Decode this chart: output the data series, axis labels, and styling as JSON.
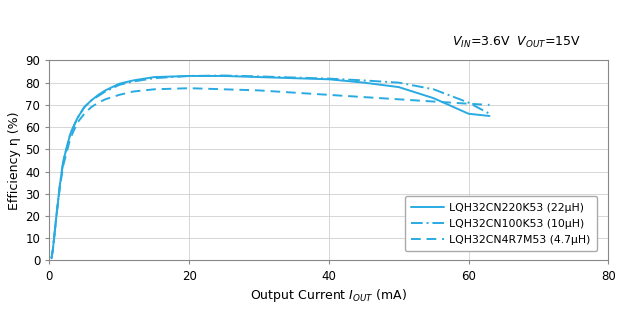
{
  "title_annotation": "$V_{IN}$=3.6V  $V_{OUT}$=15V",
  "xlabel": "Output Current $I_{OUT}$ (mA)",
  "ylabel": "Efficiency η (%)",
  "xlim": [
    0,
    80
  ],
  "ylim": [
    0,
    90
  ],
  "xticks": [
    0,
    20,
    40,
    60,
    80
  ],
  "yticks": [
    0,
    10,
    20,
    30,
    40,
    50,
    60,
    70,
    80,
    90
  ],
  "line_color": "#29ABE2",
  "background_color": "#ffffff",
  "series": [
    {
      "label": "LQH32CN220K53 (22μH)",
      "linestyle": "solid",
      "x": [
        0.3,
        0.5,
        1,
        1.5,
        2,
        3,
        4,
        5,
        6,
        7,
        8,
        9,
        10,
        12,
        15,
        20,
        25,
        30,
        35,
        40,
        45,
        50,
        55,
        60,
        63
      ],
      "y": [
        1,
        5,
        20,
        34,
        45,
        57,
        64,
        69,
        72,
        74.5,
        76.5,
        78,
        79.5,
        81,
        82.5,
        83,
        83,
        82.5,
        82,
        81.5,
        80,
        78,
        73,
        66,
        65
      ]
    },
    {
      "label": "LQH32CN100K53 (10μH)",
      "linestyle": "dashdot",
      "x": [
        0.3,
        0.5,
        1,
        1.5,
        2,
        3,
        4,
        5,
        6,
        7,
        8,
        9,
        10,
        12,
        15,
        20,
        25,
        30,
        35,
        40,
        45,
        50,
        55,
        60,
        63
      ],
      "y": [
        1,
        5,
        20,
        34,
        45,
        57,
        64,
        69,
        72,
        74,
        76,
        77.5,
        79,
        80.5,
        82,
        83,
        83.2,
        82.8,
        82.3,
        81.8,
        81,
        80,
        77,
        71,
        66
      ]
    },
    {
      "label": "LQH32CN4R7M53 (4.7μH)",
      "linestyle": "dashed",
      "x": [
        0.3,
        0.5,
        1,
        1.5,
        2,
        3,
        4,
        5,
        6,
        7,
        8,
        9,
        10,
        12,
        15,
        20,
        25,
        30,
        35,
        40,
        45,
        50,
        55,
        60,
        63
      ],
      "y": [
        1,
        5,
        20,
        33,
        43,
        55,
        62,
        66,
        69,
        71,
        72.5,
        73.5,
        74.5,
        76,
        77,
        77.5,
        77,
        76.5,
        75.5,
        74.5,
        73.5,
        72.5,
        71.5,
        70.5,
        70
      ]
    }
  ]
}
